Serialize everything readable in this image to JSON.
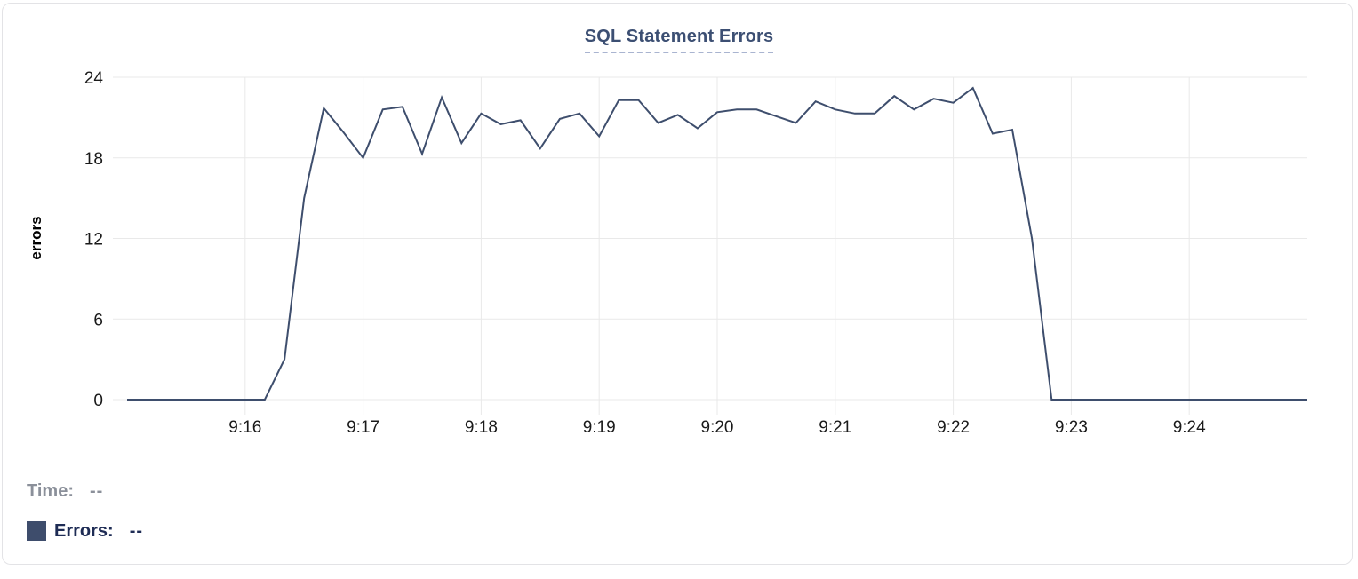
{
  "title": "SQL Statement Errors",
  "colors": {
    "title": "#3c4f73",
    "underline": "#a9b4d0",
    "line": "#3e4e6d",
    "grid": "#e9e9e9",
    "tick-text": "#1a1a1a",
    "time-gray": "#8b909a",
    "errors-navy": "#1e2c55",
    "swatch": "#3e4d6c",
    "card-border": "#e3e3e6"
  },
  "readout": {
    "time_label": "Time:",
    "time_value": "--",
    "errors_label": "Errors:",
    "errors_value": "--"
  },
  "chart_data": {
    "type": "line",
    "title": "SQL Statement Errors",
    "xlabel": "",
    "ylabel": "errors",
    "x_range": [
      "9:15:00",
      "9:25:00"
    ],
    "interval_seconds": 10,
    "x_tick_labels": [
      "9:16",
      "9:17",
      "9:18",
      "9:19",
      "9:20",
      "9:21",
      "9:22",
      "9:23",
      "9:24"
    ],
    "y_ticks": [
      0,
      6,
      12,
      18,
      24
    ],
    "ylim": [
      0,
      24
    ],
    "grid": true,
    "legend_position": "bottom-left",
    "series": [
      {
        "name": "Errors",
        "values": [
          0,
          0,
          0,
          0,
          0,
          0,
          0,
          0,
          3,
          15,
          21.7,
          19.9,
          18,
          21.6,
          21.8,
          18.3,
          22.5,
          19.1,
          21.3,
          20.5,
          20.8,
          18.7,
          20.9,
          21.3,
          19.6,
          22.3,
          22.3,
          20.6,
          21.2,
          20.2,
          21.4,
          21.6,
          21.6,
          21.1,
          20.6,
          22.2,
          21.6,
          21.3,
          21.3,
          22.6,
          21.6,
          22.4,
          22.1,
          23.2,
          19.8,
          20.1,
          12,
          0,
          0,
          0,
          0,
          0,
          0,
          0,
          0,
          0,
          0,
          0,
          0,
          0,
          0
        ]
      }
    ]
  }
}
